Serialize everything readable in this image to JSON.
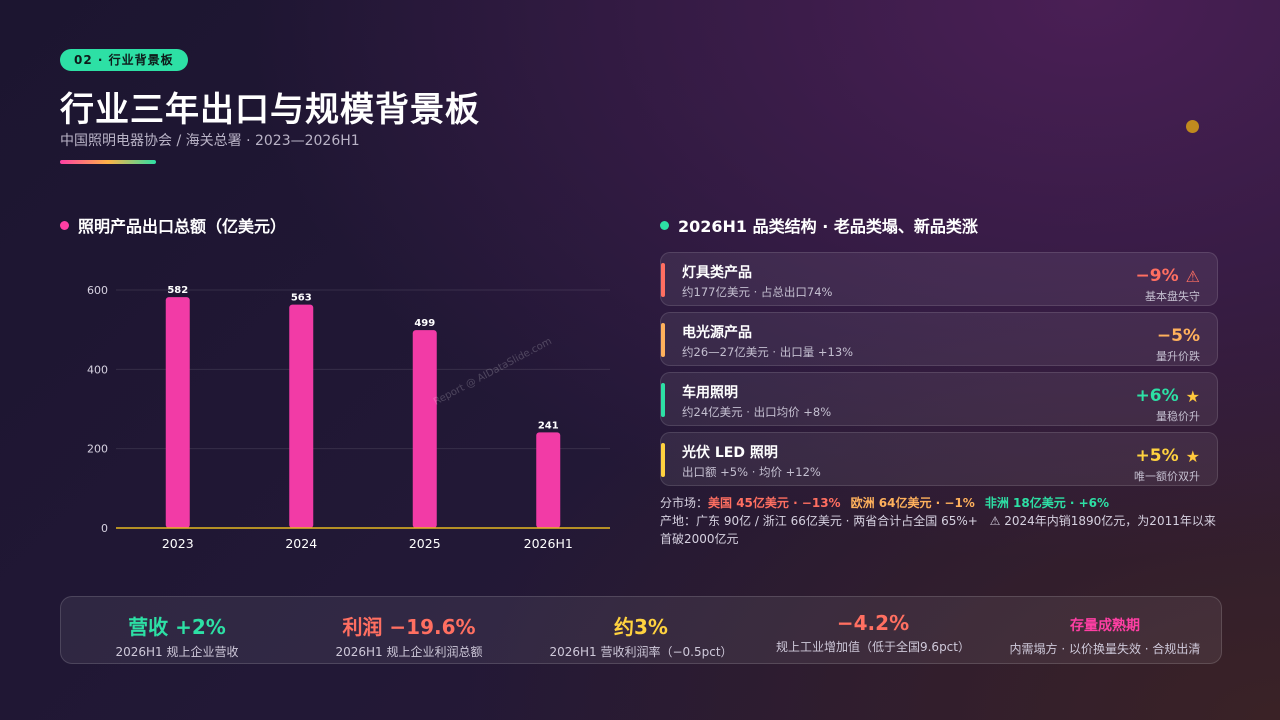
{
  "header": {
    "badge": "02 · 行业背景板",
    "title": "行业三年出口与规模背景板",
    "subtitle": "中国照明电器协会 / 海关总署 · 2023—2026H1"
  },
  "left_section": {
    "title": "照明产品出口总额（亿美元）",
    "dot_color": "#ff3fa4"
  },
  "right_section": {
    "title": "2026H1 品类结构 · 老品类塌、新品类涨",
    "dot_color": "#2de0a5"
  },
  "watermark": "Report @ AIDataSlide.com",
  "chart_data": {
    "type": "bar",
    "categories": [
      "2023",
      "2024",
      "2025",
      "2026H1"
    ],
    "values": [
      582,
      563,
      499,
      241
    ],
    "ylim": [
      0,
      600
    ],
    "yticks": [
      0,
      200,
      400,
      600
    ],
    "bar_color": "#f23ba6",
    "baseline_color": "#e6b820",
    "grid": true
  },
  "categories": [
    {
      "name": "灯具类产品",
      "desc": "约177亿美元 · 占总出口74%",
      "value": "−9%",
      "icon": "warning-icon",
      "icon_char": "⚠",
      "note": "基本盘失守",
      "color": "#ff6f61"
    },
    {
      "name": "电光源产品",
      "desc": "约26—27亿美元 · 出口量 +13%",
      "value": "−5%",
      "icon": "",
      "icon_char": "",
      "note": "量升价跌",
      "color": "#ffb15c"
    },
    {
      "name": "车用照明",
      "desc": "约24亿美元 · 出口均价 +8%",
      "value": "+6%",
      "icon": "star-icon",
      "icon_char": "★",
      "note": "量稳价升",
      "color": "#2de0a5"
    },
    {
      "name": "光伏 LED 照明",
      "desc": "出口额 +5% · 均价 +12%",
      "value": "+5%",
      "icon": "star-icon",
      "icon_char": "★",
      "note": "唯一额价双升",
      "color": "#ffd23f"
    }
  ],
  "market": {
    "label": "分市场：",
    "items": [
      {
        "text": "美国 45亿美元 · −13%",
        "color": "#ff6f61"
      },
      {
        "text": "欧洲 64亿美元 · −1%",
        "color": "#ffb15c"
      },
      {
        "text": "非洲 18亿美元 · +6%",
        "color": "#2de0a5"
      }
    ]
  },
  "origin": {
    "text": "产地：广东 90亿 / 浙江 66亿美元 · 两省合计占全国 65%+",
    "note": "⚠ 2024年内销1890亿元，为2011年以来首破2000亿元"
  },
  "kpis": [
    {
      "value": "营收 +2%",
      "label": "2026H1 规上企业营收",
      "color": "#2de0a5",
      "small": false
    },
    {
      "value": "利润 −19.6%",
      "label": "2026H1 规上企业利润总额",
      "color": "#ff6f61",
      "small": false
    },
    {
      "value": "约3%",
      "label": "2026H1 营收利润率（−0.5pct）",
      "color": "#ffd23f",
      "small": false
    },
    {
      "value": "−4.2%",
      "label": "规上工业增加值（低于全国9.6pct）",
      "color": "#ff6f61",
      "small": false
    },
    {
      "value": "存量成熟期",
      "label": "内需塌方 · 以价换量失效 · 合规出清",
      "color": "#ff3fa4",
      "small": true
    }
  ]
}
